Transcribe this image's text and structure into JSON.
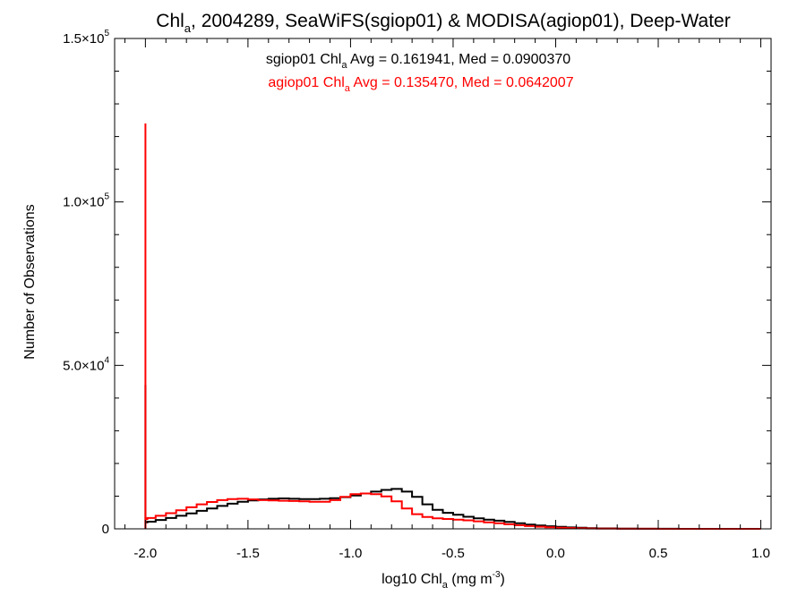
{
  "chart_data": {
    "type": "line",
    "title": {
      "prefix": "Chl",
      "sub": "a",
      "rest": ", 2004289, SeaWiFS(sgiop01) & MODISA(agiop01), Deep-Water"
    },
    "xlabel": {
      "prefix": "log10 Chl",
      "sub": "a",
      "middle": " (mg m",
      "sup": "-3",
      "end": ")"
    },
    "ylabel": "Number of Observations",
    "xlim": [
      -2.15,
      1.05
    ],
    "ylim": [
      0,
      150000
    ],
    "x_ticks": [
      {
        "value": -2.0,
        "label": "-2.0"
      },
      {
        "value": -1.5,
        "label": "-1.5"
      },
      {
        "value": -1.0,
        "label": "-1.0"
      },
      {
        "value": -0.5,
        "label": "-0.5"
      },
      {
        "value": 0.0,
        "label": "0.0"
      },
      {
        "value": 0.5,
        "label": "0.5"
      },
      {
        "value": 1.0,
        "label": "1.0"
      }
    ],
    "y_ticks": [
      {
        "value": 0,
        "mantissa": "0",
        "exp": ""
      },
      {
        "value": 50000,
        "mantissa": "5.0×10",
        "exp": "4"
      },
      {
        "value": 100000,
        "mantissa": "1.0×10",
        "exp": "5"
      },
      {
        "value": 150000,
        "mantissa": "1.5×10",
        "exp": "5"
      }
    ],
    "annotations": [
      {
        "name": "sgiop01",
        "prefix": "sgiop01 Chl",
        "sub": "a",
        "rest": " Avg = 0.161941, Med = 0.0900370",
        "color": "#000000"
      },
      {
        "name": "agiop01",
        "prefix": "agiop01 Chl",
        "sub": "a",
        "rest": " Avg = 0.135470, Med = 0.0642007",
        "color": "#ff0000"
      }
    ],
    "series": [
      {
        "name": "sgiop01",
        "color": "#000000",
        "x": [
          -2.0,
          -2.0,
          -1.99,
          -1.95,
          -1.9,
          -1.85,
          -1.8,
          -1.75,
          -1.7,
          -1.65,
          -1.6,
          -1.55,
          -1.5,
          -1.45,
          -1.4,
          -1.35,
          -1.3,
          -1.25,
          -1.2,
          -1.15,
          -1.1,
          -1.05,
          -1.0,
          -0.95,
          -0.9,
          -0.85,
          -0.8,
          -0.75,
          -0.7,
          -0.65,
          -0.6,
          -0.55,
          -0.5,
          -0.45,
          -0.4,
          -0.35,
          -0.3,
          -0.25,
          -0.2,
          -0.15,
          -0.1,
          -0.05,
          0.0,
          0.05,
          0.1,
          0.15,
          0.2,
          0.3,
          0.4,
          0.5,
          0.6,
          0.8,
          1.0
        ],
        "y": [
          44000,
          2000,
          2200,
          2700,
          3300,
          4000,
          4700,
          5500,
          6200,
          7000,
          7700,
          8300,
          8700,
          9000,
          9200,
          9300,
          9200,
          9100,
          9100,
          9200,
          9400,
          9700,
          10200,
          10800,
          11400,
          11900,
          12200,
          11400,
          9800,
          7500,
          5800,
          4900,
          4300,
          3700,
          3200,
          2800,
          2500,
          2100,
          1700,
          1300,
          1000,
          800,
          600,
          450,
          320,
          220,
          150,
          80,
          40,
          20,
          10,
          5,
          0
        ]
      },
      {
        "name": "agiop01",
        "color": "#ff0000",
        "x": [
          -2.0,
          -2.0,
          -1.99,
          -1.95,
          -1.9,
          -1.85,
          -1.8,
          -1.75,
          -1.7,
          -1.65,
          -1.6,
          -1.55,
          -1.5,
          -1.45,
          -1.4,
          -1.35,
          -1.3,
          -1.25,
          -1.2,
          -1.15,
          -1.1,
          -1.05,
          -1.0,
          -0.95,
          -0.9,
          -0.85,
          -0.8,
          -0.75,
          -0.7,
          -0.65,
          -0.6,
          -0.55,
          -0.5,
          -0.45,
          -0.4,
          -0.35,
          -0.3,
          -0.25,
          -0.2,
          -0.15,
          -0.1,
          -0.05,
          0.0,
          0.05,
          0.1,
          0.15,
          0.2,
          0.3,
          0.4,
          0.5,
          0.6,
          0.8,
          1.0
        ],
        "y": [
          124000,
          3000,
          3300,
          4000,
          4800,
          5700,
          6600,
          7500,
          8200,
          8800,
          9100,
          9200,
          9000,
          8800,
          8700,
          8600,
          8500,
          8400,
          8300,
          8300,
          8800,
          9800,
          10600,
          10800,
          10600,
          9900,
          8400,
          6200,
          4500,
          3600,
          3200,
          3000,
          2800,
          2600,
          2300,
          2000,
          1700,
          1400,
          1100,
          850,
          650,
          480,
          350,
          250,
          170,
          110,
          70,
          35,
          15,
          8,
          4,
          2,
          0
        ]
      }
    ]
  }
}
